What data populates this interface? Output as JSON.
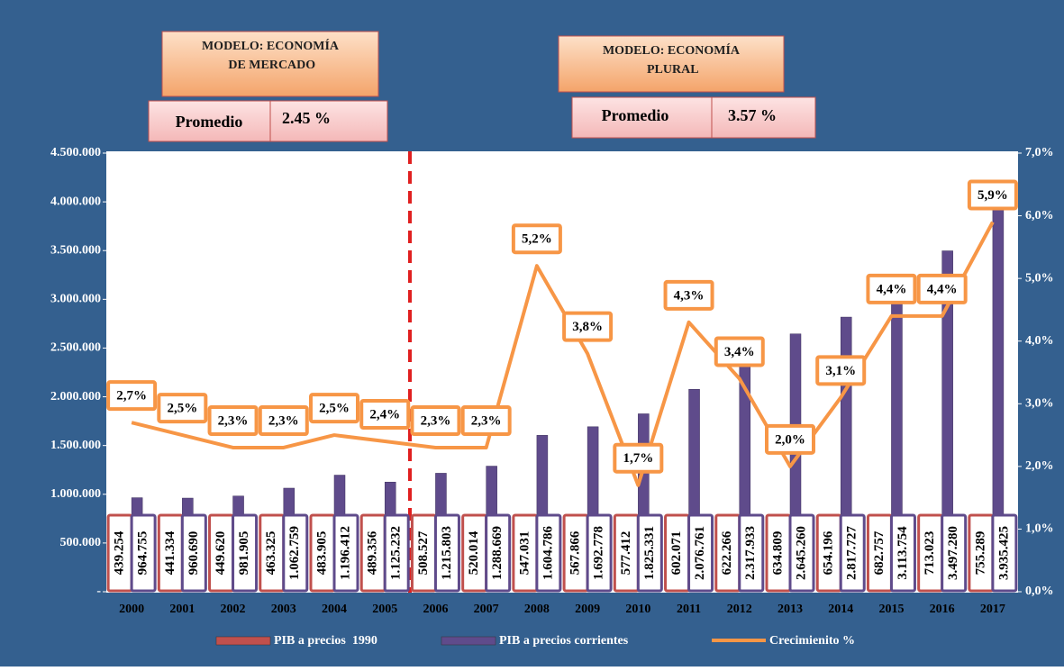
{
  "chart_data": {
    "type": "bar_line",
    "annotations": {
      "model1": "MODELO: ECONOMÍA DE MERCADO",
      "avg1_label": "Promedio",
      "avg1_value": "2.45 %",
      "model2": "MODELO: ECONOMÍA PLURAL",
      "avg2_label": "Promedio",
      "avg2_value": "3.57 %"
    },
    "categories": [
      "2000",
      "2001",
      "2002",
      "2003",
      "2004",
      "2005",
      "2006",
      "2007",
      "2008",
      "2009",
      "2010",
      "2011",
      "2012",
      "2013",
      "2014",
      "2015",
      "2016",
      "2017"
    ],
    "series": [
      {
        "name": "PIB a precios  1990",
        "color": "#c0504d",
        "values": [
          439254,
          441334,
          449620,
          463325,
          483905,
          489356,
          508527,
          520014,
          547031,
          567866,
          577412,
          602071,
          622266,
          634809,
          654196,
          682757,
          713023,
          755289
        ],
        "value_labels": [
          "439.254",
          "441.334",
          "449.620",
          "463.325",
          "483.905",
          "489.356",
          "508.527",
          "520.014",
          "547.031",
          "567.866",
          "577.412",
          "602.071",
          "622.266",
          "634.809",
          "654.196",
          "682.757",
          "713.023",
          "755.289"
        ]
      },
      {
        "name": "PIB a precios corrientes",
        "color": "#5f4b8b",
        "values": [
          964755,
          960690,
          981905,
          1062759,
          1196412,
          1125232,
          1215803,
          1288669,
          1604786,
          1692778,
          1825331,
          2076761,
          2317933,
          2645260,
          2817727,
          3113754,
          3497280,
          3935425
        ],
        "value_labels": [
          "964.755",
          "960.690",
          "981.905",
          "1.062.759",
          "1.196.412",
          "1.125.232",
          "1.215.803",
          "1.288.669",
          "1.604.786",
          "1.692.778",
          "1.825.331",
          "2.076.761",
          "2.317.933",
          "2.645.260",
          "2.817.727",
          "3.113.754",
          "3.497.280",
          "3.935.425"
        ]
      },
      {
        "name": "Crecimienito %",
        "color": "#f79646",
        "axis": "y2",
        "values": [
          2.7,
          2.5,
          2.3,
          2.3,
          2.5,
          2.4,
          2.3,
          2.3,
          5.2,
          3.8,
          1.7,
          4.3,
          3.4,
          2.0,
          3.1,
          4.4,
          4.4,
          5.9
        ],
        "value_labels": [
          "2,7%",
          "2,5%",
          "2,3%",
          "2,3%",
          "2,5%",
          "2,4%",
          "2,3%",
          "2,3%",
          "5,2%",
          "3,8%",
          "1,7%",
          "4,3%",
          "3,4%",
          "2,0%",
          "3,1%",
          "4,4%",
          "4,4%",
          "5,9%"
        ]
      }
    ],
    "ylim": [
      0,
      4500000
    ],
    "yticks": [
      {
        "value": 0,
        "label": "-"
      },
      {
        "value": 500000,
        "label": "500.000"
      },
      {
        "value": 1000000,
        "label": "1.000.000"
      },
      {
        "value": 1500000,
        "label": "1.500.000"
      },
      {
        "value": 2000000,
        "label": "2.000.000"
      },
      {
        "value": 2500000,
        "label": "2.500.000"
      },
      {
        "value": 3000000,
        "label": "3.000.000"
      },
      {
        "value": 3500000,
        "label": "3.500.000"
      },
      {
        "value": 4000000,
        "label": "4.000.000"
      },
      {
        "value": 4500000,
        "label": "4.500.000"
      }
    ],
    "y2lim": [
      0,
      7
    ],
    "y2ticks": [
      {
        "value": 0,
        "label": "0,0%"
      },
      {
        "value": 1,
        "label": "1,0%"
      },
      {
        "value": 2,
        "label": "2,0%"
      },
      {
        "value": 3,
        "label": "3,0%"
      },
      {
        "value": 4,
        "label": "4,0%"
      },
      {
        "value": 5,
        "label": "5,0%"
      },
      {
        "value": 6,
        "label": "6,0%"
      },
      {
        "value": 7,
        "label": "7,0%"
      }
    ]
  }
}
